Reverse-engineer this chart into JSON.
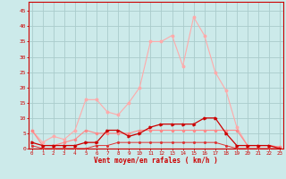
{
  "x": [
    0,
    1,
    2,
    3,
    4,
    5,
    6,
    7,
    8,
    9,
    10,
    11,
    12,
    13,
    14,
    15,
    16,
    17,
    18,
    19,
    20,
    21,
    22,
    23
  ],
  "series_light_pink": [
    6,
    2,
    4,
    3,
    6,
    16,
    16,
    12,
    11,
    15,
    20,
    35,
    35,
    37,
    27,
    43,
    37,
    25,
    19,
    7,
    1,
    1,
    1,
    0.5
  ],
  "series_pink": [
    6,
    1,
    1,
    2,
    3,
    6,
    5,
    5,
    5,
    5,
    6,
    6,
    6,
    6,
    6,
    6,
    6,
    6,
    6,
    6,
    1,
    1,
    1,
    0.5
  ],
  "series_dark_red": [
    2,
    1,
    1,
    1,
    1,
    2,
    2,
    6,
    6,
    4,
    5,
    7,
    8,
    8,
    8,
    8,
    10,
    10,
    5,
    1,
    1,
    1,
    1,
    0
  ],
  "series_red": [
    1,
    0,
    0,
    0,
    0,
    0,
    1,
    1,
    2,
    2,
    2,
    2,
    2,
    2,
    2,
    2,
    2,
    2,
    1,
    0,
    0,
    0,
    0,
    0
  ],
  "xlabel": "Vent moyen/en rafales ( km/h )",
  "ylabel_ticks": [
    0,
    5,
    10,
    15,
    20,
    25,
    30,
    35,
    40,
    45
  ],
  "xlim": [
    -0.3,
    23.3
  ],
  "ylim": [
    0,
    48
  ],
  "bg_color": "#cceaea",
  "grid_color": "#aacccc",
  "color_light_pink": "#ffaaaa",
  "color_pink": "#ff8888",
  "color_dark_red": "#cc0000",
  "color_red": "#dd3333",
  "axis_color": "#cc0000",
  "xlabel_color": "#cc0000"
}
